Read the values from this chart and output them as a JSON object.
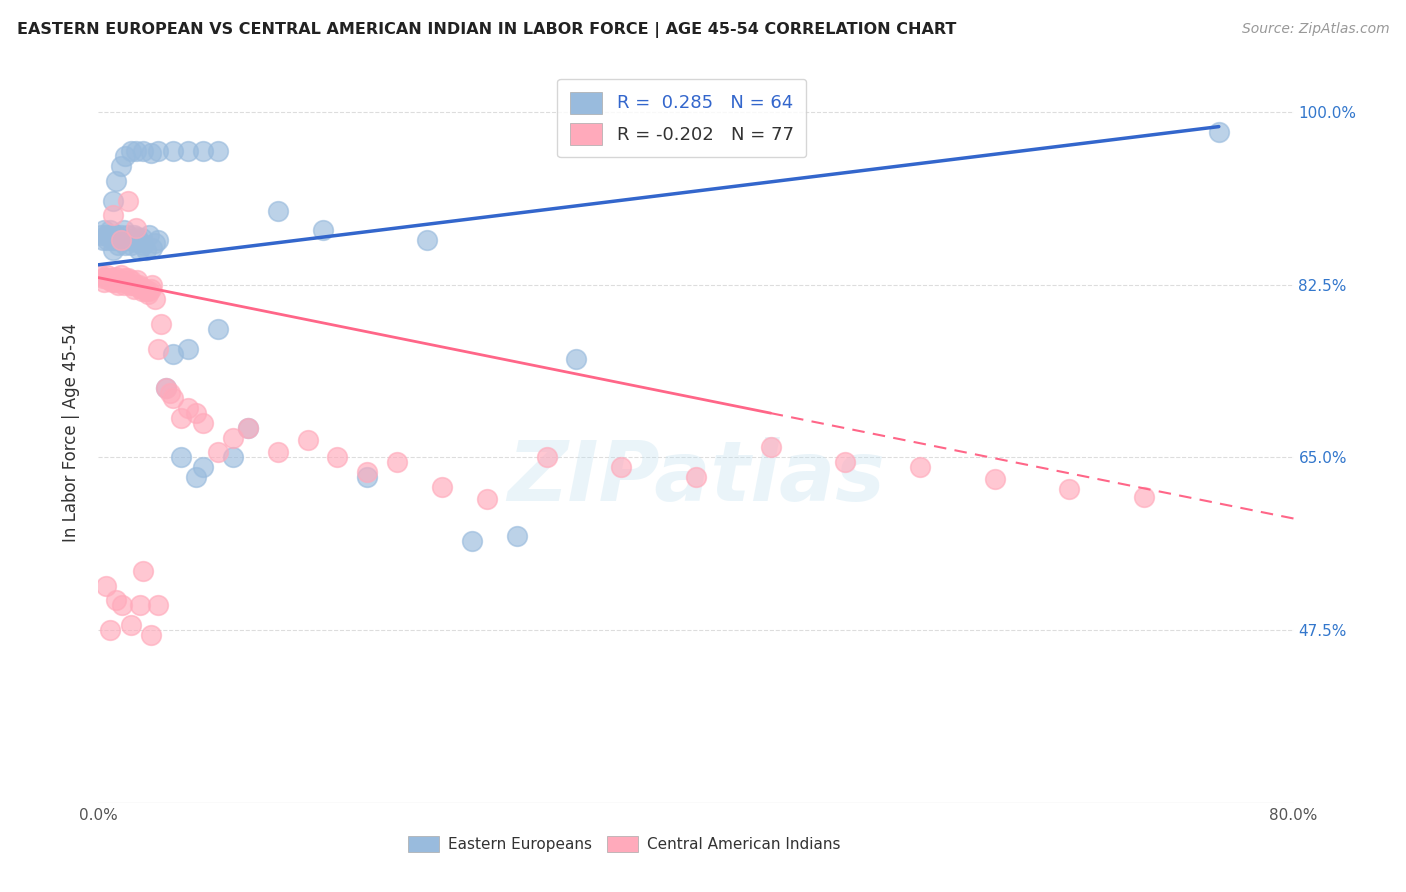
{
  "title": "EASTERN EUROPEAN VS CENTRAL AMERICAN INDIAN IN LABOR FORCE | AGE 45-54 CORRELATION CHART",
  "source": "Source: ZipAtlas.com",
  "ylabel": "In Labor Force | Age 45-54",
  "xlim": [
    0.0,
    0.8
  ],
  "ylim": [
    0.3,
    1.05
  ],
  "x_ticks": [
    0.0,
    0.1,
    0.2,
    0.3,
    0.4,
    0.5,
    0.6,
    0.7,
    0.8
  ],
  "x_tick_labels": [
    "0.0%",
    "",
    "",
    "",
    "",
    "",
    "",
    "",
    "80.0%"
  ],
  "y_ticks": [
    0.475,
    0.65,
    0.825,
    1.0
  ],
  "y_tick_labels": [
    "47.5%",
    "65.0%",
    "82.5%",
    "100.0%"
  ],
  "blue_color": "#99BBDD",
  "pink_color": "#FFAABB",
  "blue_line_color": "#3366CC",
  "pink_line_color": "#FF6688",
  "watermark": "ZIPatlas",
  "blue_R": 0.285,
  "blue_N": 64,
  "pink_R": -0.202,
  "pink_N": 77,
  "blue_line_x0": 0.0,
  "blue_line_y0": 0.845,
  "blue_line_x1": 0.75,
  "blue_line_y1": 0.985,
  "pink_line_x0": 0.0,
  "pink_line_y0": 0.832,
  "pink_line_x1": 0.8,
  "pink_line_y1": 0.588,
  "eastern_european_x": [
    0.002,
    0.003,
    0.004,
    0.005,
    0.006,
    0.007,
    0.008,
    0.009,
    0.01,
    0.011,
    0.012,
    0.013,
    0.014,
    0.015,
    0.016,
    0.017,
    0.018,
    0.019,
    0.02,
    0.021,
    0.022,
    0.023,
    0.024,
    0.025,
    0.026,
    0.027,
    0.028,
    0.029,
    0.03,
    0.032,
    0.034,
    0.036,
    0.038,
    0.04,
    0.045,
    0.05,
    0.055,
    0.06,
    0.065,
    0.07,
    0.08,
    0.09,
    0.1,
    0.12,
    0.15,
    0.18,
    0.22,
    0.25,
    0.28,
    0.32,
    0.01,
    0.012,
    0.015,
    0.018,
    0.022,
    0.025,
    0.03,
    0.035,
    0.04,
    0.05,
    0.06,
    0.07,
    0.08,
    0.75
  ],
  "eastern_european_y": [
    0.875,
    0.87,
    0.88,
    0.875,
    0.87,
    0.875,
    0.88,
    0.87,
    0.86,
    0.87,
    0.875,
    0.865,
    0.87,
    0.875,
    0.87,
    0.88,
    0.865,
    0.87,
    0.875,
    0.87,
    0.865,
    0.87,
    0.875,
    0.868,
    0.873,
    0.86,
    0.868,
    0.872,
    0.865,
    0.86,
    0.875,
    0.862,
    0.867,
    0.87,
    0.72,
    0.755,
    0.65,
    0.76,
    0.63,
    0.64,
    0.78,
    0.65,
    0.68,
    0.9,
    0.88,
    0.63,
    0.87,
    0.565,
    0.57,
    0.75,
    0.91,
    0.93,
    0.945,
    0.955,
    0.96,
    0.96,
    0.96,
    0.958,
    0.96,
    0.96,
    0.96,
    0.96,
    0.96,
    0.98
  ],
  "central_american_x": [
    0.002,
    0.003,
    0.004,
    0.005,
    0.006,
    0.007,
    0.008,
    0.009,
    0.01,
    0.011,
    0.012,
    0.013,
    0.014,
    0.015,
    0.016,
    0.017,
    0.018,
    0.019,
    0.02,
    0.021,
    0.022,
    0.023,
    0.024,
    0.025,
    0.026,
    0.027,
    0.028,
    0.029,
    0.03,
    0.031,
    0.032,
    0.033,
    0.034,
    0.035,
    0.036,
    0.038,
    0.04,
    0.042,
    0.045,
    0.048,
    0.05,
    0.055,
    0.06,
    0.065,
    0.07,
    0.08,
    0.09,
    0.1,
    0.12,
    0.14,
    0.16,
    0.18,
    0.2,
    0.23,
    0.26,
    0.3,
    0.35,
    0.4,
    0.45,
    0.5,
    0.55,
    0.6,
    0.65,
    0.7,
    0.01,
    0.015,
    0.02,
    0.025,
    0.03,
    0.005,
    0.008,
    0.012,
    0.016,
    0.022,
    0.028,
    0.035,
    0.04
  ],
  "central_american_y": [
    0.835,
    0.832,
    0.828,
    0.832,
    0.835,
    0.83,
    0.832,
    0.828,
    0.832,
    0.828,
    0.833,
    0.825,
    0.83,
    0.835,
    0.828,
    0.825,
    0.832,
    0.828,
    0.832,
    0.825,
    0.83,
    0.825,
    0.82,
    0.825,
    0.83,
    0.825,
    0.822,
    0.818,
    0.822,
    0.82,
    0.818,
    0.815,
    0.818,
    0.82,
    0.825,
    0.81,
    0.76,
    0.785,
    0.72,
    0.715,
    0.71,
    0.69,
    0.7,
    0.695,
    0.685,
    0.655,
    0.67,
    0.68,
    0.655,
    0.668,
    0.65,
    0.635,
    0.645,
    0.62,
    0.608,
    0.65,
    0.64,
    0.63,
    0.66,
    0.645,
    0.64,
    0.628,
    0.618,
    0.61,
    0.895,
    0.87,
    0.91,
    0.882,
    0.535,
    0.52,
    0.475,
    0.505,
    0.5,
    0.48,
    0.5,
    0.47,
    0.5
  ]
}
